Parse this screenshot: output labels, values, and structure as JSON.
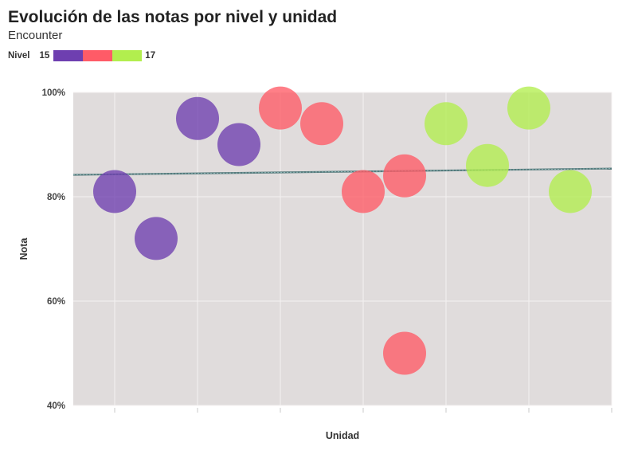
{
  "chart_data": {
    "type": "scatter",
    "title": "Evolución de las notas por nivel y unidad",
    "subtitle": "Encounter",
    "xlabel": "Unidad",
    "ylabel": "Nota",
    "ylim": [
      40,
      100
    ],
    "xlim": [
      0,
      13
    ],
    "y_ticks": [
      {
        "value": 40,
        "label": "40%"
      },
      {
        "value": 60,
        "label": "60%"
      },
      {
        "value": 80,
        "label": "80%"
      },
      {
        "value": 100,
        "label": "100%"
      }
    ],
    "x_gridlines": [
      1,
      3,
      5,
      7,
      9,
      11,
      13
    ],
    "grid": true,
    "legend": {
      "title": "Nivel",
      "min_label": "15",
      "max_label": "17",
      "position": "top-left",
      "colors": [
        "#6e3fb0",
        "#ff5b67",
        "#b2ee4e"
      ]
    },
    "colors": {
      "15": "#6e3fb0",
      "16": "#ff5b67",
      "17": "#b2ee4e"
    },
    "points": [
      {
        "x": 1,
        "y": 81,
        "nivel": 15
      },
      {
        "x": 2,
        "y": 72,
        "nivel": 15
      },
      {
        "x": 3,
        "y": 95,
        "nivel": 15
      },
      {
        "x": 4,
        "y": 90,
        "nivel": 15
      },
      {
        "x": 5,
        "y": 97,
        "nivel": 16
      },
      {
        "x": 6,
        "y": 94,
        "nivel": 16
      },
      {
        "x": 7,
        "y": 81,
        "nivel": 16
      },
      {
        "x": 8,
        "y": 84,
        "nivel": 16
      },
      {
        "x": 8,
        "y": 50,
        "nivel": 16
      },
      {
        "x": 9,
        "y": 94,
        "nivel": 17
      },
      {
        "x": 10,
        "y": 86,
        "nivel": 17
      },
      {
        "x": 11,
        "y": 97,
        "nivel": 17
      },
      {
        "x": 12,
        "y": 81,
        "nivel": 17
      }
    ],
    "trend_line": {
      "start": [
        0,
        84.2
      ],
      "end": [
        13,
        85.4
      ],
      "color": "#3e6a6c"
    },
    "panel_background": "#e0dcdc"
  }
}
